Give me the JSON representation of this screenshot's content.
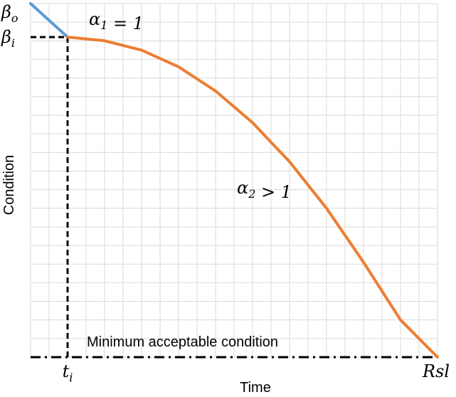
{
  "chart_data": {
    "type": "line",
    "title": "",
    "xlabel": "Time",
    "ylabel": "Condition",
    "grid": true,
    "xlim": [
      0,
      11
    ],
    "ylim": [
      0,
      9.5
    ],
    "x_ticks": [
      {
        "x": 1,
        "label": "t_i"
      },
      {
        "x": 11,
        "label": "Rsl"
      }
    ],
    "y_ticks": [
      {
        "y": 9.5,
        "label": "β_o"
      },
      {
        "y": 8.6,
        "label": "β_i"
      }
    ],
    "series": [
      {
        "name": "α_1 = 1",
        "color": "#5b9bd5",
        "x": [
          0,
          1
        ],
        "y": [
          9.5,
          8.6
        ]
      },
      {
        "name": "α_2 > 1",
        "color": "#ed7d31",
        "x": [
          1,
          2,
          3,
          4,
          5,
          6,
          7,
          8,
          9,
          10,
          11
        ],
        "y": [
          8.6,
          8.5,
          8.25,
          7.8,
          7.15,
          6.3,
          5.25,
          4.0,
          2.55,
          1.0,
          0
        ]
      }
    ],
    "reference_lines": [
      {
        "label": "Minimum acceptable condition",
        "orientation": "horizontal",
        "y": 0,
        "style": "dash-dot"
      },
      {
        "label": "",
        "orientation": "horizontal",
        "y": 8.6,
        "x_range": [
          0,
          1
        ],
        "style": "dashed"
      },
      {
        "label": "",
        "orientation": "vertical",
        "x": 1,
        "y_range": [
          0,
          8.6
        ],
        "style": "dashed"
      }
    ]
  }
}
